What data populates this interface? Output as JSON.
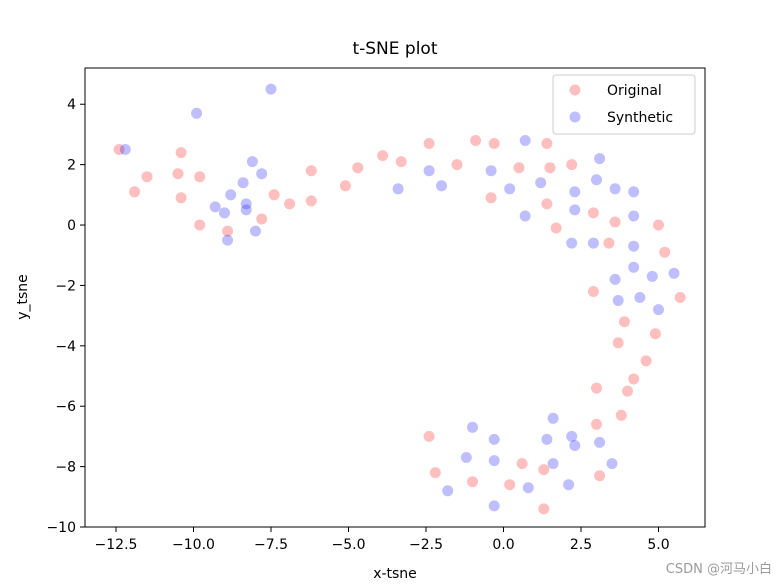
{
  "chart_data": {
    "type": "scatter",
    "title": "t-SNE plot",
    "xlabel": "x-tsne",
    "ylabel": "y_tsne",
    "xlim": [
      -13.5,
      6.5
    ],
    "ylim": [
      -10,
      5.2
    ],
    "xticks": [
      -12.5,
      -10.0,
      -7.5,
      -5.0,
      -2.5,
      0.0,
      2.5,
      5.0
    ],
    "xtick_labels": [
      "−12.5",
      "−10.0",
      "−7.5",
      "−5.0",
      "−2.5",
      "0.0",
      "2.5",
      "5.0"
    ],
    "yticks": [
      -10,
      -8,
      -6,
      -4,
      -2,
      0,
      2,
      4
    ],
    "ytick_labels": [
      "−10",
      "−8",
      "−6",
      "−4",
      "−2",
      "0",
      "2",
      "4"
    ],
    "grid": false,
    "legend_position": "top-right",
    "series": [
      {
        "name": "Original",
        "color": "#ff0000",
        "alpha": 0.25,
        "points": [
          [
            -12.4,
            2.5
          ],
          [
            -11.9,
            1.1
          ],
          [
            -11.5,
            1.6
          ],
          [
            -10.5,
            1.7
          ],
          [
            -10.4,
            2.4
          ],
          [
            -10.4,
            0.9
          ],
          [
            -9.8,
            1.6
          ],
          [
            -9.8,
            0.0
          ],
          [
            -8.9,
            -0.2
          ],
          [
            -7.8,
            0.2
          ],
          [
            -7.4,
            1.0
          ],
          [
            -6.9,
            0.7
          ],
          [
            -6.2,
            1.8
          ],
          [
            -6.2,
            0.8
          ],
          [
            -5.1,
            1.3
          ],
          [
            -4.7,
            1.9
          ],
          [
            -3.9,
            2.3
          ],
          [
            -3.3,
            2.1
          ],
          [
            -2.4,
            2.7
          ],
          [
            -1.5,
            2.0
          ],
          [
            -0.9,
            2.8
          ],
          [
            -0.3,
            2.7
          ],
          [
            -0.4,
            0.9
          ],
          [
            0.5,
            1.9
          ],
          [
            1.4,
            2.7
          ],
          [
            1.5,
            1.9
          ],
          [
            1.4,
            0.7
          ],
          [
            1.7,
            -0.1
          ],
          [
            2.2,
            2.0
          ],
          [
            2.9,
            0.4
          ],
          [
            3.4,
            -0.6
          ],
          [
            3.6,
            0.1
          ],
          [
            5.0,
            0.0
          ],
          [
            5.2,
            -0.9
          ],
          [
            2.9,
            -2.2
          ],
          [
            3.9,
            -3.2
          ],
          [
            3.7,
            -3.9
          ],
          [
            5.7,
            -2.4
          ],
          [
            4.9,
            -3.6
          ],
          [
            4.6,
            -4.5
          ],
          [
            4.2,
            -5.1
          ],
          [
            4.0,
            -5.5
          ],
          [
            3.0,
            -5.4
          ],
          [
            3.8,
            -6.3
          ],
          [
            3.0,
            -6.6
          ],
          [
            -2.4,
            -7.0
          ],
          [
            -2.2,
            -8.2
          ],
          [
            -1.0,
            -8.5
          ],
          [
            0.2,
            -8.6
          ],
          [
            0.6,
            -7.9
          ],
          [
            1.3,
            -8.1
          ],
          [
            1.3,
            -9.4
          ],
          [
            3.1,
            -8.3
          ]
        ]
      },
      {
        "name": "Synthetic",
        "color": "#0000ff",
        "alpha": 0.25,
        "points": [
          [
            -12.2,
            2.5
          ],
          [
            -9.9,
            3.7
          ],
          [
            -7.5,
            4.5
          ],
          [
            -9.3,
            0.6
          ],
          [
            -9.0,
            0.4
          ],
          [
            -8.9,
            -0.5
          ],
          [
            -8.8,
            1.0
          ],
          [
            -8.4,
            1.4
          ],
          [
            -8.3,
            0.7
          ],
          [
            -8.3,
            0.5
          ],
          [
            -8.1,
            2.1
          ],
          [
            -8.0,
            -0.2
          ],
          [
            -7.8,
            1.7
          ],
          [
            -3.4,
            1.2
          ],
          [
            -2.4,
            1.8
          ],
          [
            -2.0,
            1.3
          ],
          [
            -0.4,
            1.8
          ],
          [
            0.2,
            1.2
          ],
          [
            0.7,
            2.8
          ],
          [
            0.7,
            0.3
          ],
          [
            1.2,
            1.4
          ],
          [
            2.3,
            1.1
          ],
          [
            2.3,
            0.5
          ],
          [
            2.2,
            -0.6
          ],
          [
            2.9,
            -0.6
          ],
          [
            3.0,
            1.5
          ],
          [
            3.1,
            2.2
          ],
          [
            3.6,
            1.2
          ],
          [
            3.6,
            -1.8
          ],
          [
            3.7,
            -2.5
          ],
          [
            4.2,
            1.1
          ],
          [
            4.2,
            0.3
          ],
          [
            4.2,
            -0.7
          ],
          [
            4.2,
            -1.4
          ],
          [
            4.4,
            -2.4
          ],
          [
            4.8,
            -1.7
          ],
          [
            5.0,
            -2.8
          ],
          [
            5.5,
            -1.6
          ],
          [
            -1.0,
            -6.7
          ],
          [
            -1.2,
            -7.7
          ],
          [
            -1.8,
            -8.8
          ],
          [
            -0.3,
            -7.1
          ],
          [
            -0.3,
            -7.8
          ],
          [
            -0.3,
            -9.3
          ],
          [
            0.8,
            -8.7
          ],
          [
            1.6,
            -6.4
          ],
          [
            1.6,
            -7.9
          ],
          [
            1.4,
            -7.1
          ],
          [
            2.1,
            -8.6
          ],
          [
            2.2,
            -7.0
          ],
          [
            2.3,
            -7.3
          ],
          [
            3.1,
            -7.2
          ],
          [
            3.5,
            -7.9
          ]
        ]
      }
    ]
  },
  "watermark": "CSDN @河马小白"
}
